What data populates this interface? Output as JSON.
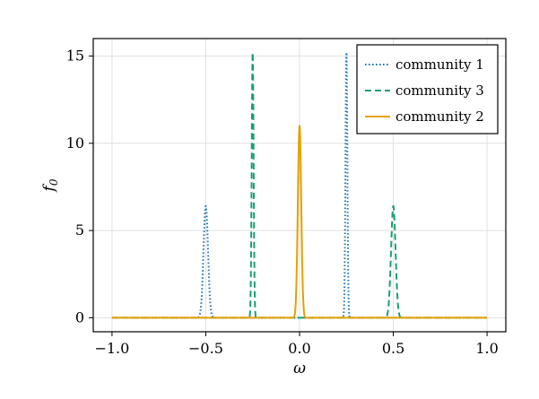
{
  "chart_data": {
    "type": "line",
    "title": "",
    "xlabel": "ω",
    "ylabel_main": "f",
    "ylabel_sub": "0",
    "xlim": [
      -1.1,
      1.1
    ],
    "ylim": [
      -0.8,
      16.0
    ],
    "xticks": [
      -1.0,
      -0.5,
      0.0,
      0.5,
      1.0
    ],
    "xtick_labels": [
      "−1.0",
      "−0.5",
      "0.0",
      "0.5",
      "1.0"
    ],
    "yticks": [
      0,
      5,
      10,
      15
    ],
    "ytick_labels": [
      "0",
      "5",
      "10",
      "15"
    ],
    "grid": true,
    "legend_position": "top-right",
    "series": [
      {
        "name": "community 1",
        "style": "dotted",
        "color": "#1f78b4",
        "peaks": [
          {
            "center": -0.5,
            "height": 6.4,
            "width": 0.012
          },
          {
            "center": 0.25,
            "height": 15.2,
            "width": 0.005
          }
        ],
        "x_range": [
          -1.0,
          1.0
        ]
      },
      {
        "name": "community 3",
        "style": "dashed",
        "color": "#1b9e77",
        "peaks": [
          {
            "center": -0.25,
            "height": 15.2,
            "width": 0.005
          },
          {
            "center": 0.5,
            "height": 6.4,
            "width": 0.012
          }
        ],
        "x_range": [
          -1.0,
          1.0
        ]
      },
      {
        "name": "community 2",
        "style": "solid",
        "color": "#e6a000",
        "peaks": [
          {
            "center": 0.0,
            "height": 11.0,
            "width": 0.009
          }
        ],
        "x_range": [
          -1.0,
          1.0
        ]
      }
    ]
  }
}
